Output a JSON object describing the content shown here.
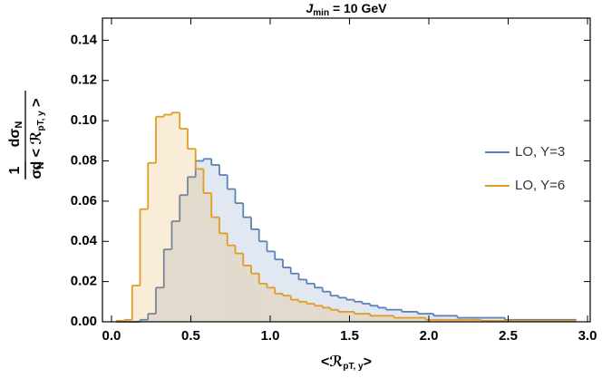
{
  "chart_data": {
    "type": "histogram",
    "title_parts": [
      "J",
      "min",
      " = 10 GeV"
    ],
    "ylabel": {
      "factor_num": "1",
      "factor_den": [
        "σ",
        "N"
      ],
      "num": [
        "dσ",
        "N"
      ],
      "den": [
        "d < ℛ",
        "pT, y",
        " >"
      ]
    },
    "xlabel": [
      "<ℛ",
      "pT, y",
      ">"
    ],
    "xlim": [
      -0.057,
      3.017
    ],
    "ylim": [
      0,
      0.151
    ],
    "xticks": [
      {
        "value": 0,
        "label": "0.0"
      },
      {
        "value": 0.5,
        "label": "0.5"
      },
      {
        "value": 1,
        "label": "1.0"
      },
      {
        "value": 1.5,
        "label": "1.5"
      },
      {
        "value": 2,
        "label": "2.0"
      },
      {
        "value": 2.5,
        "label": "2.5"
      },
      {
        "value": 3,
        "label": "3.0"
      }
    ],
    "yticks": [
      {
        "value": 0,
        "label": "0.00"
      },
      {
        "value": 0.02,
        "label": "0.02"
      },
      {
        "value": 0.04,
        "label": "0.04"
      },
      {
        "value": 0.06,
        "label": "0.06"
      },
      {
        "value": 0.08,
        "label": "0.08"
      },
      {
        "value": 0.1,
        "label": "0.10"
      },
      {
        "value": 0.12,
        "label": "0.12"
      },
      {
        "value": 0.14,
        "label": "0.14"
      }
    ],
    "bins": [
      0.03,
      0.08,
      0.13,
      0.18,
      0.23,
      0.28,
      0.33,
      0.38,
      0.43,
      0.48,
      0.53,
      0.58,
      0.63,
      0.68,
      0.73,
      0.78,
      0.83,
      0.88,
      0.93,
      0.98,
      1.03,
      1.08,
      1.13,
      1.18,
      1.23,
      1.28,
      1.33,
      1.38,
      1.43,
      1.48,
      1.53,
      1.58,
      1.63,
      1.68,
      1.73,
      1.78,
      1.83,
      1.88,
      1.93,
      1.98,
      2.03,
      2.08,
      2.13,
      2.18,
      2.23,
      2.28,
      2.33,
      2.38,
      2.43,
      2.48,
      2.53,
      2.58,
      2.63,
      2.68,
      2.73,
      2.78,
      2.83,
      2.88,
      2.93
    ],
    "legend_position": "right",
    "series": [
      {
        "name": "LO, Y=3",
        "color": "#5e81b5",
        "values": [
          0,
          0,
          0,
          0.001,
          0.004,
          0.017,
          0.036,
          0.05,
          0.063,
          0.072,
          0.08,
          0.081,
          0.078,
          0.073,
          0.066,
          0.059,
          0.052,
          0.046,
          0.04,
          0.035,
          0.031,
          0.027,
          0.024,
          0.021,
          0.019,
          0.017,
          0.015,
          0.013,
          0.012,
          0.011,
          0.01,
          0.009,
          0.008,
          0.007,
          0.006,
          0.006,
          0.005,
          0.005,
          0.004,
          0.004,
          0.003,
          0.003,
          0.003,
          0.002,
          0.002,
          0.002,
          0.002,
          0.002,
          0.002,
          0.001,
          0.001,
          0.001,
          0.001,
          0.001,
          0.001,
          0.001,
          0.001,
          0.001
        ]
      },
      {
        "name": "LO, Y=6",
        "color": "#e19c24",
        "values": [
          0.0005,
          0.001,
          0.018,
          0.056,
          0.079,
          0.102,
          0.103,
          0.104,
          0.096,
          0.086,
          0.076,
          0.064,
          0.052,
          0.044,
          0.038,
          0.034,
          0.028,
          0.024,
          0.019,
          0.017,
          0.014,
          0.013,
          0.011,
          0.01,
          0.009,
          0.008,
          0.007,
          0.006,
          0.005,
          0.005,
          0.004,
          0.004,
          0.003,
          0.003,
          0.003,
          0.002,
          0.002,
          0.002,
          0.002,
          0.001,
          0.001,
          0.001,
          0.001,
          0.001,
          0.001,
          0.001,
          0.0005,
          0.0005,
          0.0005,
          0.0005,
          0.0005,
          0.0005,
          0.0005,
          0.0005,
          0.0005,
          0.0005,
          0.0005,
          0.0005
        ]
      }
    ]
  }
}
